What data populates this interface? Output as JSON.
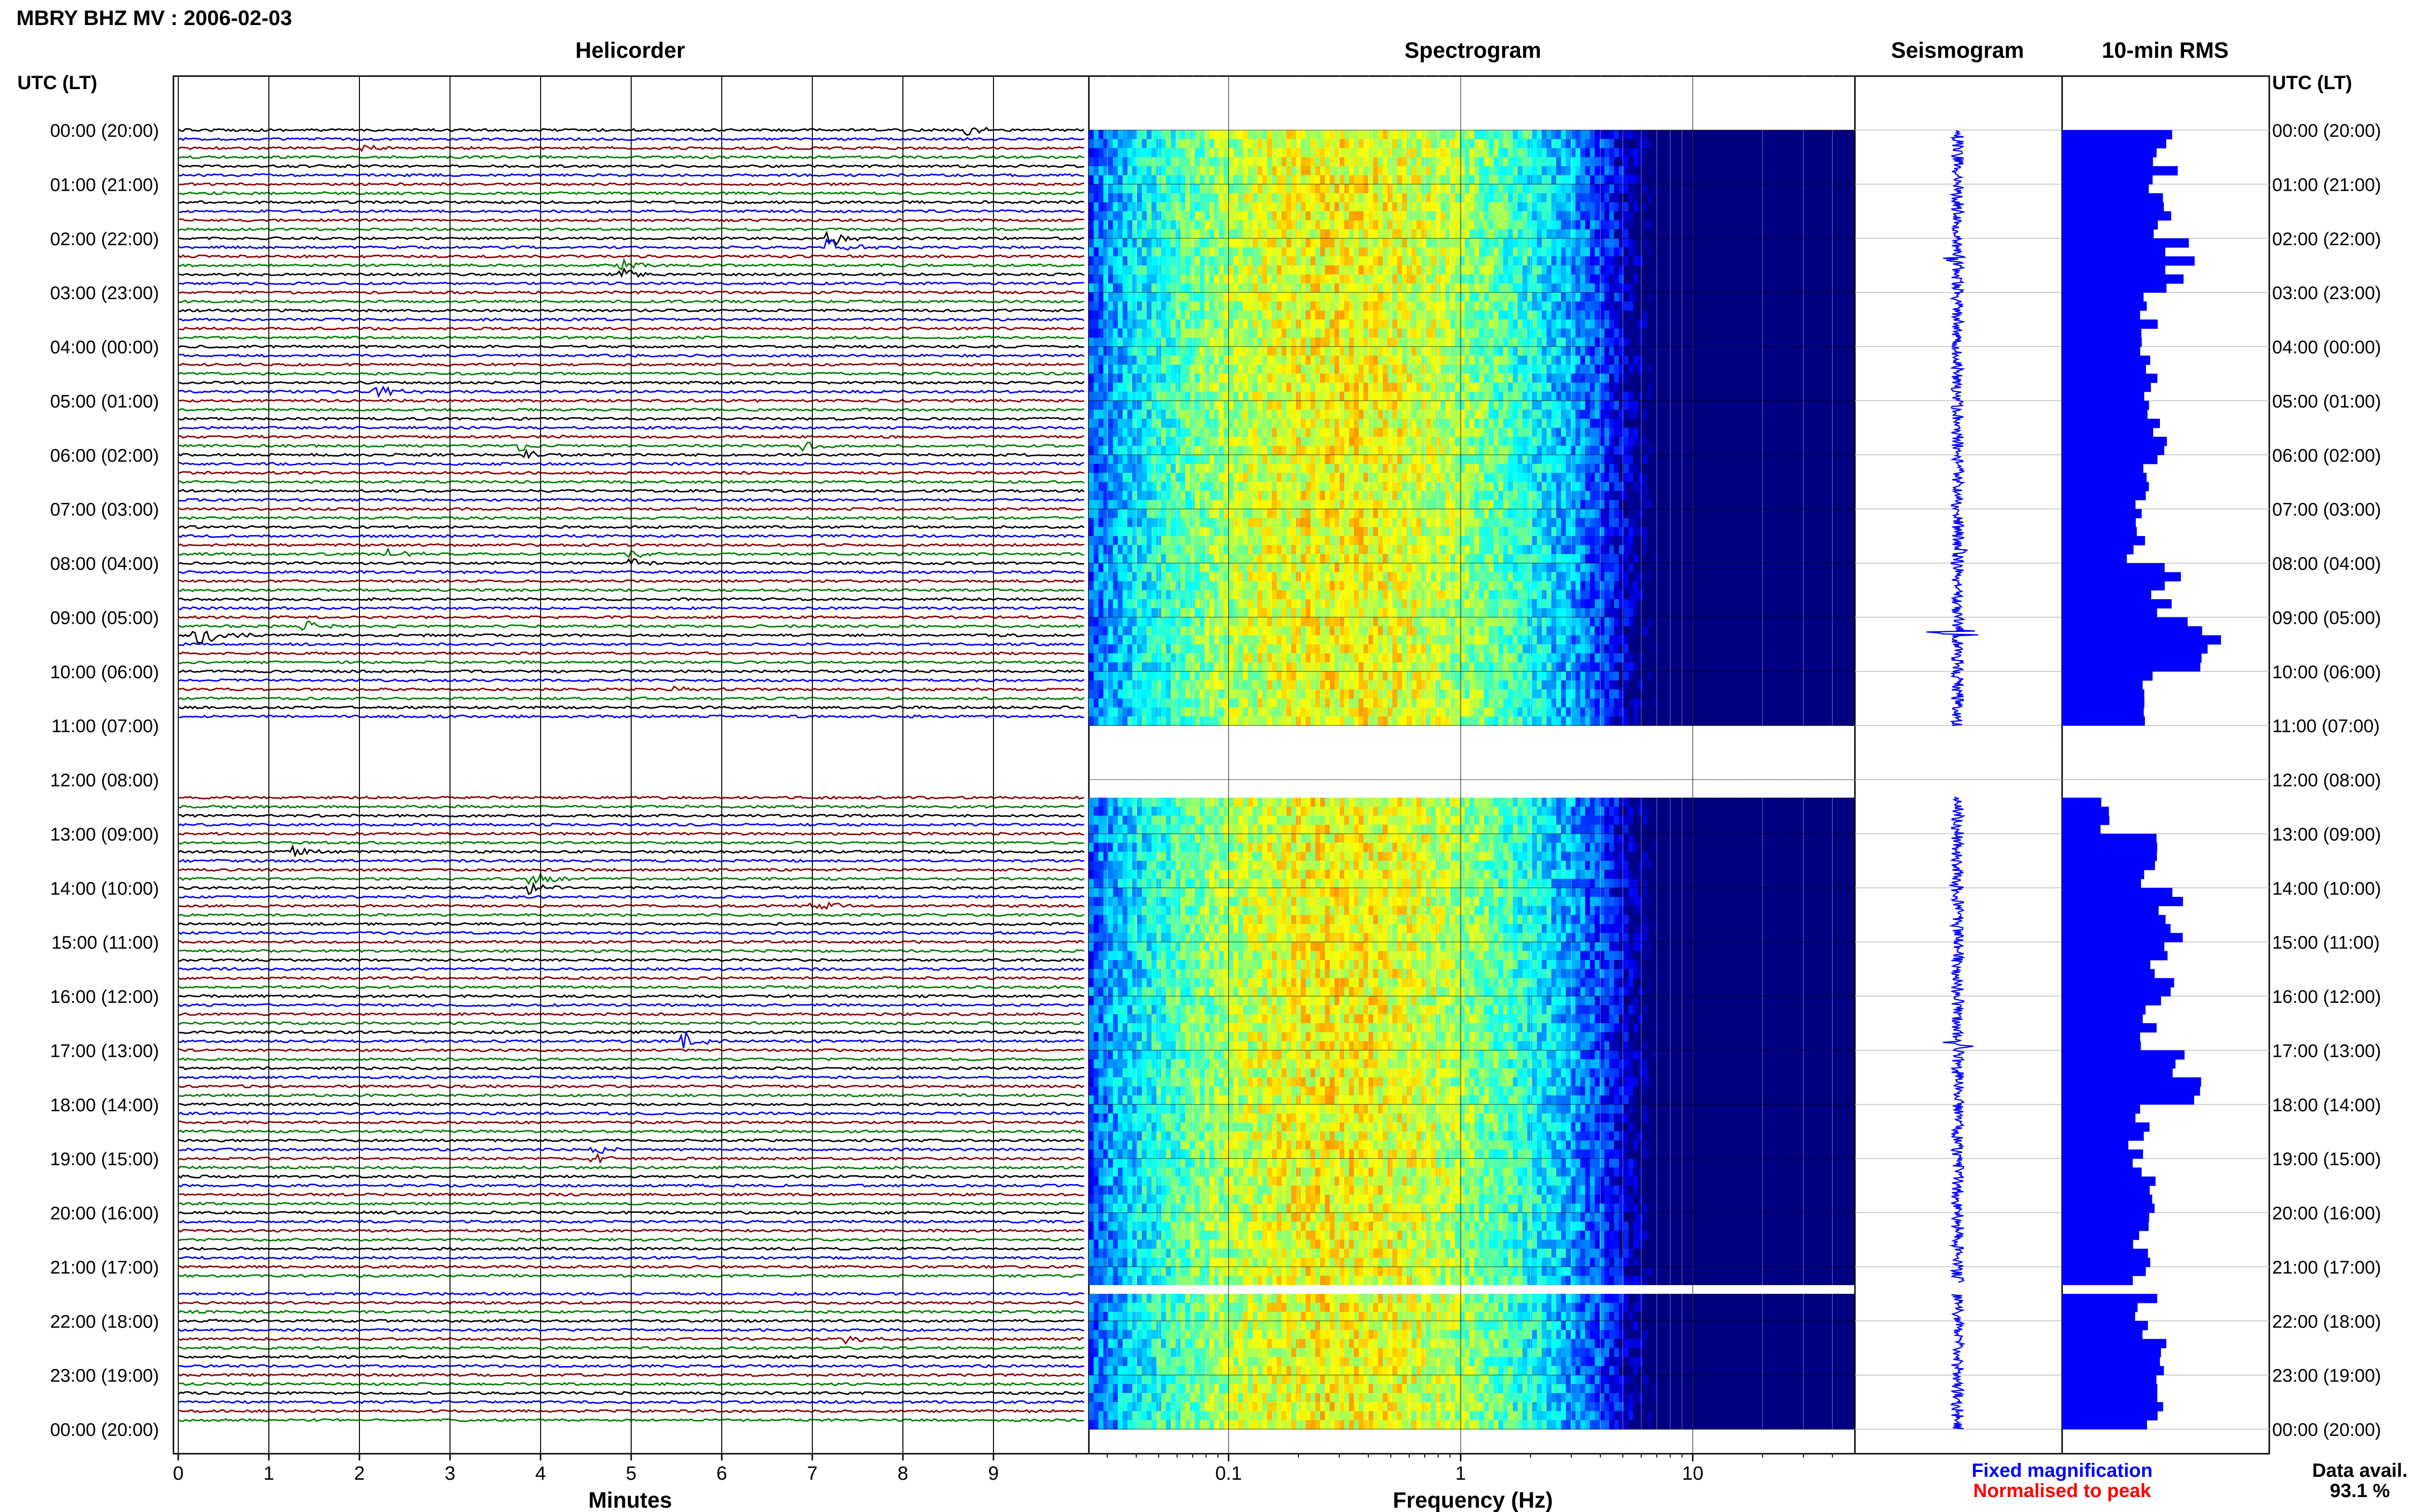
{
  "header": {
    "station_title": "MBRY BHZ MV : 2006-02-03"
  },
  "colors": {
    "trace_palette": [
      "#000000",
      "#0000ff",
      "#8b0000",
      "#008000"
    ],
    "seismogram": "#0000ff",
    "rms_bar": "#0000ff",
    "legend_fixed": "#0000ff",
    "legend_normalised": "#ff0000"
  },
  "chart_data": [
    {
      "type": "line",
      "title": "Helicorder",
      "xlabel": "Minutes",
      "ylabel": "UTC (LT)",
      "right_ylabel": "UTC (LT)",
      "xlim": [
        0,
        10
      ],
      "x_ticks": [
        0,
        1,
        2,
        3,
        4,
        5,
        6,
        7,
        8,
        9
      ],
      "x_tick_labels": [
        "0",
        "1",
        "2",
        "3",
        "4",
        "5",
        "6",
        "7",
        "8",
        "9"
      ],
      "ylim_hours": [
        0,
        24
      ],
      "y_tick_hours": [
        0,
        1,
        2,
        3,
        4,
        5,
        6,
        7,
        8,
        9,
        10,
        11,
        12,
        13,
        14,
        15,
        16,
        17,
        18,
        19,
        20,
        21,
        22,
        23,
        24
      ],
      "y_tick_labels": [
        "00:00 (20:00)",
        "01:00 (21:00)",
        "02:00 (22:00)",
        "03:00 (23:00)",
        "04:00 (00:00)",
        "05:00 (01:00)",
        "06:00 (02:00)",
        "07:00 (03:00)",
        "08:00 (04:00)",
        "09:00 (05:00)",
        "10:00 (06:00)",
        "11:00 (07:00)",
        "12:00 (08:00)",
        "13:00 (09:00)",
        "14:00 (10:00)",
        "15:00 (11:00)",
        "16:00 (12:00)",
        "17:00 (13:00)",
        "18:00 (14:00)",
        "19:00 (15:00)",
        "20:00 (16:00)",
        "21:00 (17:00)",
        "22:00 (18:00)",
        "23:00 (19:00)",
        "00:00 (20:00)"
      ],
      "traces_per_hour": 6,
      "gaps_hours": [
        [
          11.0,
          12.3
        ],
        [
          21.3,
          21.5
        ]
      ],
      "events": [
        {
          "hour": 0.0,
          "minute": 8.7,
          "amp": 4
        },
        {
          "hour": 0.3,
          "minute": 2.0,
          "amp": 3
        },
        {
          "hour": 2.1,
          "minute": 7.2,
          "amp": 6
        },
        {
          "hour": 2.6,
          "minute": 4.9,
          "amp": 4
        },
        {
          "hour": 4.8,
          "minute": 2.2,
          "amp": 5
        },
        {
          "hour": 5.8,
          "minute": 6.9,
          "amp": 3
        },
        {
          "hour": 5.9,
          "minute": 3.8,
          "amp": 3
        },
        {
          "hour": 7.8,
          "minute": 2.3,
          "amp": 4
        },
        {
          "hour": 7.9,
          "minute": 5.0,
          "amp": 3
        },
        {
          "hour": 9.3,
          "minute": 0.2,
          "amp": 10
        },
        {
          "hour": 9.2,
          "minute": 1.4,
          "amp": 4
        },
        {
          "hour": 10.3,
          "minute": 5.5,
          "amp": 3
        },
        {
          "hour": 13.3,
          "minute": 1.3,
          "amp": 4
        },
        {
          "hour": 13.9,
          "minute": 3.9,
          "amp": 5
        },
        {
          "hour": 14.3,
          "minute": 7.0,
          "amp": 4
        },
        {
          "hour": 16.8,
          "minute": 5.6,
          "amp": 6
        },
        {
          "hour": 18.9,
          "minute": 4.6,
          "amp": 3
        },
        {
          "hour": 22.3,
          "minute": 7.4,
          "amp": 3
        }
      ]
    },
    {
      "type": "heatmap",
      "title": "Spectrogram",
      "xlabel": "Frequency (Hz)",
      "x_scale": "log",
      "xlim": [
        0.025,
        50
      ],
      "x_ticks": [
        0.1,
        1,
        10
      ],
      "x_tick_labels": [
        "0.1",
        "1",
        "10"
      ],
      "colormap": "jet",
      "peak_frequency_hz": 0.3,
      "gaps_hours": [
        [
          11.0,
          12.3
        ],
        [
          21.3,
          21.5
        ]
      ]
    },
    {
      "type": "line",
      "title": "Seismogram",
      "gaps_hours": [
        [
          11.0,
          12.3
        ],
        [
          21.3,
          21.5
        ]
      ],
      "spikes": [
        {
          "hour": 2.4,
          "amp": 2.5
        },
        {
          "hour": 7.8,
          "amp": 1.6
        },
        {
          "hour": 9.3,
          "amp": 5.0
        },
        {
          "hour": 14.0,
          "amp": 1.8
        },
        {
          "hour": 16.9,
          "amp": 3.0
        }
      ]
    },
    {
      "type": "bar",
      "title": "10-min RMS",
      "orientation": "horizontal",
      "gaps_hours": [
        [
          11.0,
          12.3
        ],
        [
          21.3,
          21.5
        ]
      ],
      "hourly_values": [
        1.0,
        0.95,
        1.15,
        0.85,
        0.8,
        0.95,
        0.82,
        0.7,
        1.0,
        1.35,
        0.8,
        0.0,
        0.4,
        0.8,
        1.05,
        0.95,
        0.85,
        1.25,
        0.75,
        0.8,
        0.8,
        0.8,
        0.9,
        0.85
      ],
      "xlim": [
        0,
        2
      ]
    }
  ],
  "legend": {
    "fixed_label": "Fixed magnification",
    "normalised_label": "Normalised to peak"
  },
  "data_availability": {
    "label": "Data avail.",
    "value": "93.1 %"
  }
}
